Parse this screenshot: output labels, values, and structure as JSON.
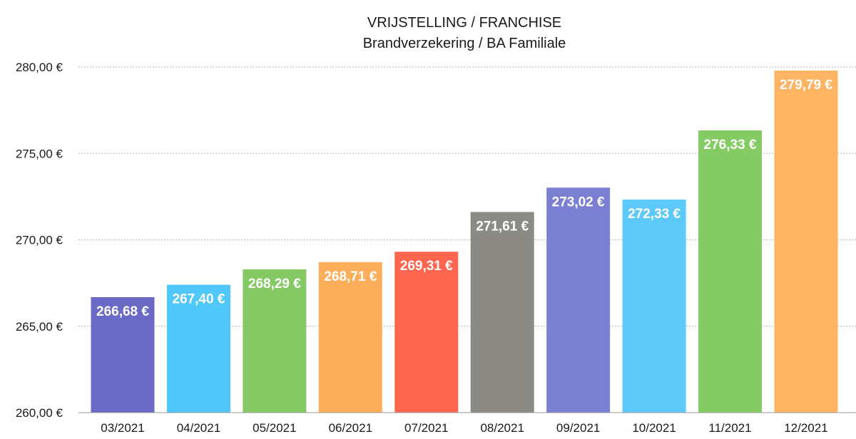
{
  "chart_data": {
    "type": "bar",
    "title": "VRIJSTELLING / FRANCHISE",
    "subtitle": "Brandverzekering / BA Familiale",
    "xlabel": "",
    "ylabel": "",
    "categories": [
      "03/2021",
      "04/2021",
      "05/2021",
      "06/2021",
      "07/2021",
      "08/2021",
      "09/2021",
      "10/2021",
      "11/2021",
      "12/2021"
    ],
    "values": [
      266.68,
      267.4,
      268.29,
      268.71,
      269.31,
      271.61,
      273.02,
      272.33,
      276.33,
      279.79
    ],
    "value_labels": [
      "266,68 €",
      "267,40 €",
      "268,29 €",
      "268,71 €",
      "269,31 €",
      "271,61 €",
      "273,02 €",
      "272,33 €",
      "276,33 €",
      "279,79 €"
    ],
    "colors": [
      "#6a6ac6",
      "#4fc7f9",
      "#85c964",
      "#fdae5a",
      "#fe6650",
      "#8c8a85",
      "#7a7fd1",
      "#5dc9f9",
      "#85cb64",
      "#fdb463"
    ],
    "ylim": [
      260,
      280
    ],
    "yticks": [
      260,
      265,
      270,
      275,
      280
    ],
    "ytick_labels": [
      "260,00 €",
      "265,00 €",
      "270,00 €",
      "275,00 €",
      "280,00 €"
    ],
    "grid": true,
    "legend": "none"
  }
}
